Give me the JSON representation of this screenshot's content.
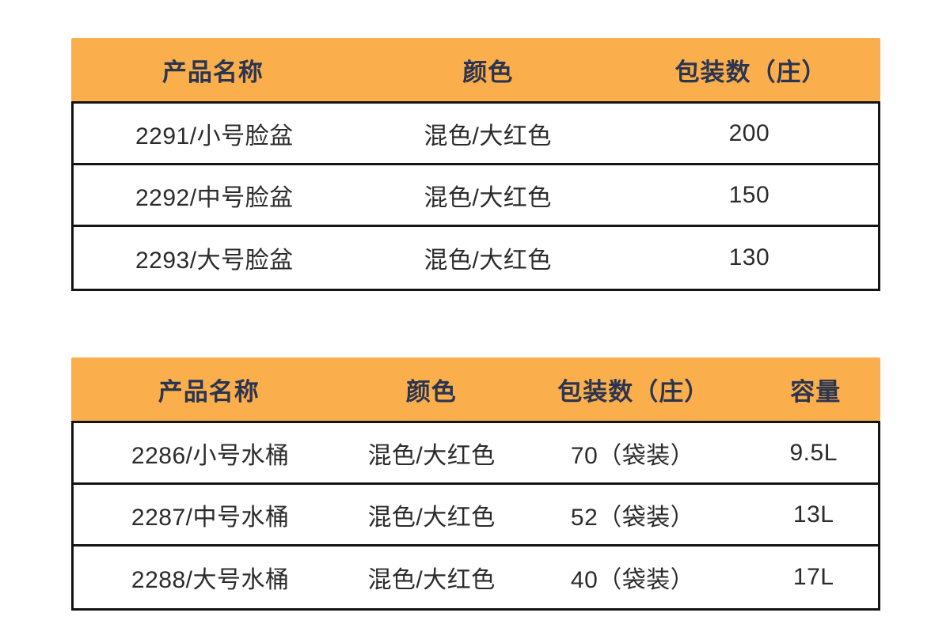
{
  "colors": {
    "header_bg": "#FBAE4C",
    "header_text": "#2B3550",
    "body_text": "#2B2B2B",
    "border": "#141414",
    "page_bg": "#FFFFFF"
  },
  "chart_data": [
    {
      "type": "table",
      "name": "basin-products",
      "columns": [
        "产品名称",
        "颜色",
        "包装数（庄）"
      ],
      "rows": [
        [
          "2291/小号脸盆",
          "混色/大红色",
          "200"
        ],
        [
          "2292/中号脸盆",
          "混色/大红色",
          "150"
        ],
        [
          "2293/大号脸盆",
          "混色/大红色",
          "130"
        ]
      ],
      "layout_hints": {
        "header_bg": "#FBAE4C",
        "header_align": "center",
        "cell_align": "center"
      }
    },
    {
      "type": "table",
      "name": "bucket-products",
      "columns": [
        "产品名称",
        "颜色",
        "包装数（庄）",
        "容量"
      ],
      "rows": [
        [
          "2286/小号水桶",
          "混色/大红色",
          "70（袋装）",
          "9.5L"
        ],
        [
          "2287/中号水桶",
          "混色/大红色",
          "52（袋装）",
          "13L"
        ],
        [
          "2288/大号水桶",
          "混色/大红色",
          "40（袋装）",
          "17L"
        ]
      ],
      "layout_hints": {
        "header_bg": "#FBAE4C",
        "header_align": "center",
        "cell_align": "center"
      }
    }
  ]
}
